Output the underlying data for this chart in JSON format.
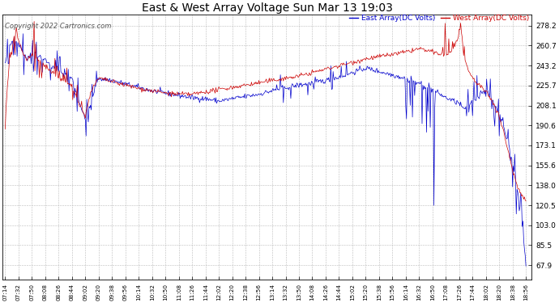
{
  "title": "East & West Array Voltage Sun Mar 13 19:03",
  "copyright": "Copyright 2022 Cartronics.com",
  "legend_east": "East Array(DC Volts)",
  "legend_west": "West Array(DC Volts)",
  "color_east": "#0000cc",
  "color_west": "#cc0000",
  "background_color": "#ffffff",
  "grid_color": "#bbbbbb",
  "yticks": [
    67.9,
    85.5,
    103.0,
    120.5,
    138.0,
    155.6,
    173.1,
    190.6,
    208.1,
    225.7,
    243.2,
    260.7,
    278.2
  ],
  "ylim": [
    55.0,
    288.0
  ],
  "xtick_labels": [
    "07:14",
    "07:32",
    "07:50",
    "08:08",
    "08:26",
    "08:44",
    "09:02",
    "09:20",
    "09:38",
    "09:56",
    "10:14",
    "10:32",
    "10:50",
    "11:08",
    "11:26",
    "11:44",
    "12:02",
    "12:20",
    "12:38",
    "12:56",
    "13:14",
    "13:32",
    "13:50",
    "14:08",
    "14:26",
    "14:44",
    "15:02",
    "15:20",
    "15:38",
    "15:56",
    "16:14",
    "16:32",
    "16:50",
    "17:08",
    "17:26",
    "17:44",
    "18:02",
    "18:20",
    "18:38",
    "18:56"
  ],
  "xtick_positions": [
    0,
    18,
    36,
    54,
    72,
    90,
    108,
    126,
    144,
    162,
    180,
    198,
    216,
    234,
    252,
    270,
    288,
    306,
    324,
    342,
    360,
    378,
    396,
    414,
    432,
    450,
    468,
    486,
    504,
    522,
    540,
    558,
    576,
    594,
    612,
    630,
    648,
    666,
    684,
    702
  ],
  "xlim": [
    -4,
    710
  ]
}
